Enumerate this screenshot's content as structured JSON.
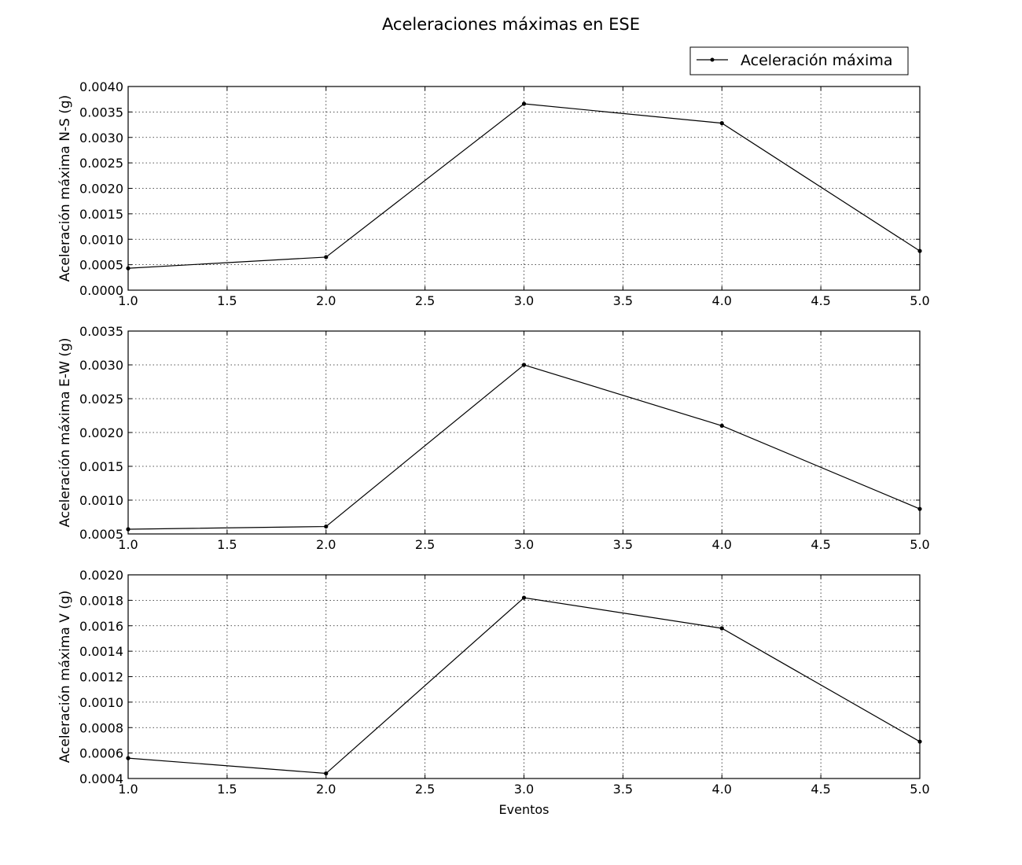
{
  "figure": {
    "title": "Aceleraciones máximas en ESE",
    "legend": {
      "label": "Aceleración máxima",
      "placement": "top-right"
    }
  },
  "chart_data": [
    {
      "type": "line",
      "title": "",
      "xlabel": "",
      "ylabel": "Aceleración máxima N-S (g)",
      "xlim": [
        1.0,
        5.0
      ],
      "ylim": [
        0.0,
        0.004
      ],
      "xticks": [
        "1.0",
        "1.5",
        "2.0",
        "2.5",
        "3.0",
        "3.5",
        "4.0",
        "4.5",
        "5.0"
      ],
      "yticks": [
        "0.0000",
        "0.0005",
        "0.0010",
        "0.0015",
        "0.0020",
        "0.0025",
        "0.0030",
        "0.0035",
        "0.0040"
      ],
      "grid": true,
      "color": "#000000",
      "series": [
        {
          "name": "Aceleración máxima",
          "x": [
            1,
            2,
            3,
            4,
            5
          ],
          "y": [
            0.00043,
            0.00065,
            0.00366,
            0.00328,
            0.00077
          ]
        }
      ]
    },
    {
      "type": "line",
      "title": "",
      "xlabel": "",
      "ylabel": "Aceleración máxima E-W (g)",
      "xlim": [
        1.0,
        5.0
      ],
      "ylim": [
        0.0005,
        0.0035
      ],
      "xticks": [
        "1.0",
        "1.5",
        "2.0",
        "2.5",
        "3.0",
        "3.5",
        "4.0",
        "4.5",
        "5.0"
      ],
      "yticks": [
        "0.0005",
        "0.0010",
        "0.0015",
        "0.0020",
        "0.0025",
        "0.0030",
        "0.0035"
      ],
      "grid": true,
      "color": "#000000",
      "series": [
        {
          "name": "Aceleración máxima",
          "x": [
            1,
            2,
            3,
            4,
            5
          ],
          "y": [
            0.00057,
            0.00061,
            0.003,
            0.0021,
            0.00087
          ]
        }
      ]
    },
    {
      "type": "line",
      "title": "",
      "xlabel": "Eventos",
      "ylabel": "Aceleración máxima V (g)",
      "xlim": [
        1.0,
        5.0
      ],
      "ylim": [
        0.0004,
        0.002
      ],
      "xticks": [
        "1.0",
        "1.5",
        "2.0",
        "2.5",
        "3.0",
        "3.5",
        "4.0",
        "4.5",
        "5.0"
      ],
      "yticks": [
        "0.0004",
        "0.0006",
        "0.0008",
        "0.0010",
        "0.0012",
        "0.0014",
        "0.0016",
        "0.0018",
        "0.0020"
      ],
      "grid": true,
      "color": "#000000",
      "series": [
        {
          "name": "Aceleración máxima",
          "x": [
            1,
            2,
            3,
            4,
            5
          ],
          "y": [
            0.00056,
            0.00044,
            0.00182,
            0.00158,
            0.00069
          ]
        }
      ]
    }
  ]
}
